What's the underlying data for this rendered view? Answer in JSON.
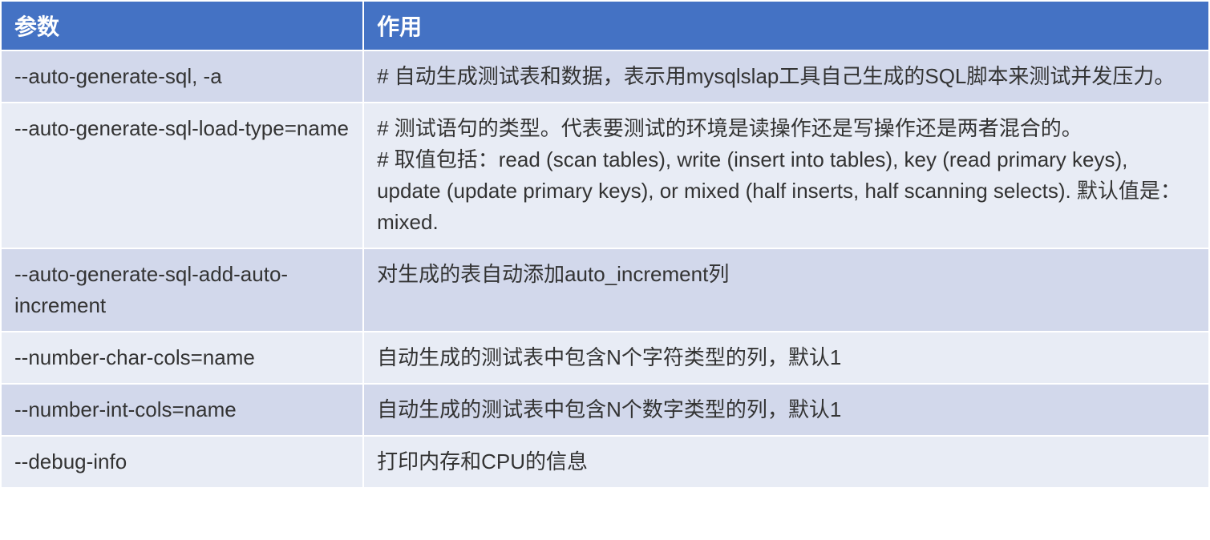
{
  "table": {
    "header_bg": "#4472c4",
    "header_fg": "#ffffff",
    "row_odd_bg": "#d2d8eb",
    "row_even_bg": "#e8ecf5",
    "text_color": "#333333",
    "border_color": "#ffffff",
    "font_family": "Microsoft YaHei",
    "header_fontsize": 28,
    "cell_fontsize": 26,
    "columns": [
      {
        "key": "param",
        "label": "参数",
        "width": "30%"
      },
      {
        "key": "desc",
        "label": "作用",
        "width": "70%"
      }
    ],
    "rows": [
      {
        "param": "--auto-generate-sql, -a",
        "desc": "# 自动生成测试表和数据，表示用mysqlslap工具自己生成的SQL脚本来测试并发压力。"
      },
      {
        "param": "--auto-generate-sql-load-type=name",
        "desc": "# 测试语句的类型。代表要测试的环境是读操作还是写操作还是两者混合的。\n# 取值包括：read (scan tables), write (insert into tables), key (read primary keys), update (update primary keys), or mixed (half inserts, half scanning selects). 默认值是：mixed."
      },
      {
        "param": "--auto-generate-sql-add-auto-increment",
        "desc": "对生成的表自动添加auto_increment列"
      },
      {
        "param": "--number-char-cols=name",
        "desc": " 自动生成的测试表中包含N个字符类型的列，默认1"
      },
      {
        "param": "--number-int-cols=name",
        "desc": "自动生成的测试表中包含N个数字类型的列，默认1"
      },
      {
        "param": "--debug-info",
        "desc": "打印内存和CPU的信息"
      }
    ]
  }
}
